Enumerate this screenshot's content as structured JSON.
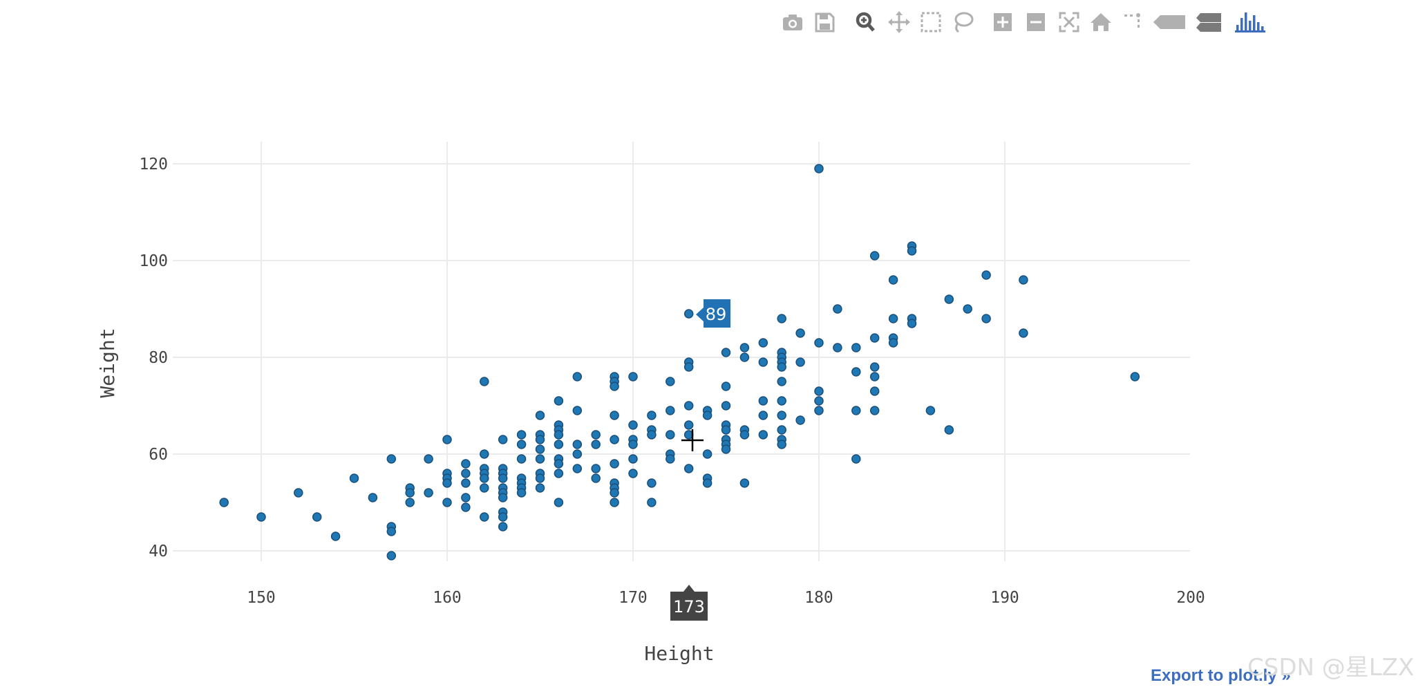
{
  "modebar": {
    "icons": [
      "camera-icon",
      "save-icon",
      "zoom-icon",
      "pan-icon",
      "box-select-icon",
      "lasso-icon",
      "zoom-in-icon",
      "zoom-out-icon",
      "autoscale-icon",
      "home-icon",
      "spike-lines-icon",
      "hover-closest-icon",
      "hover-compare-icon",
      "plotly-logo-icon"
    ],
    "icon_color": "#b0b0b0",
    "active_color": "#5a5a5a",
    "logo_color": "#3d6dbf"
  },
  "chart_data": {
    "type": "scatter",
    "xlabel": "Height",
    "ylabel": "Weight",
    "xlim": [
      145,
      200
    ],
    "ylim": [
      35,
      125
    ],
    "xticks": [
      150,
      160,
      170,
      180,
      190,
      200
    ],
    "yticks": [
      40,
      60,
      80,
      100,
      120
    ],
    "grid": true,
    "marker_color": "#1f77b4",
    "points": [
      [
        148,
        50
      ],
      [
        150,
        47
      ],
      [
        152,
        52
      ],
      [
        153,
        47
      ],
      [
        154,
        43
      ],
      [
        155,
        55
      ],
      [
        156,
        51
      ],
      [
        157,
        59
      ],
      [
        157,
        45
      ],
      [
        157,
        44
      ],
      [
        157,
        39
      ],
      [
        158,
        53
      ],
      [
        158,
        52
      ],
      [
        158,
        50
      ],
      [
        159,
        59
      ],
      [
        159,
        52
      ],
      [
        160,
        63
      ],
      [
        160,
        56
      ],
      [
        160,
        55
      ],
      [
        160,
        54
      ],
      [
        160,
        50
      ],
      [
        161,
        58
      ],
      [
        161,
        56
      ],
      [
        161,
        54
      ],
      [
        161,
        51
      ],
      [
        161,
        49
      ],
      [
        162,
        75
      ],
      [
        162,
        60
      ],
      [
        162,
        57
      ],
      [
        162,
        56
      ],
      [
        162,
        55
      ],
      [
        162,
        53
      ],
      [
        162,
        47
      ],
      [
        163,
        63
      ],
      [
        163,
        57
      ],
      [
        163,
        56
      ],
      [
        163,
        55
      ],
      [
        163,
        53
      ],
      [
        163,
        52
      ],
      [
        163,
        51
      ],
      [
        163,
        48
      ],
      [
        163,
        47
      ],
      [
        163,
        45
      ],
      [
        164,
        64
      ],
      [
        164,
        62
      ],
      [
        164,
        59
      ],
      [
        164,
        55
      ],
      [
        164,
        54
      ],
      [
        164,
        53
      ],
      [
        164,
        52
      ],
      [
        165,
        68
      ],
      [
        165,
        64
      ],
      [
        165,
        63
      ],
      [
        165,
        61
      ],
      [
        165,
        59
      ],
      [
        165,
        56
      ],
      [
        165,
        55
      ],
      [
        165,
        53
      ],
      [
        166,
        71
      ],
      [
        166,
        66
      ],
      [
        166,
        65
      ],
      [
        166,
        64
      ],
      [
        166,
        62
      ],
      [
        166,
        59
      ],
      [
        166,
        58
      ],
      [
        166,
        56
      ],
      [
        166,
        50
      ],
      [
        167,
        76
      ],
      [
        167,
        69
      ],
      [
        167,
        62
      ],
      [
        167,
        60
      ],
      [
        167,
        57
      ],
      [
        168,
        64
      ],
      [
        168,
        62
      ],
      [
        168,
        57
      ],
      [
        168,
        55
      ],
      [
        169,
        76
      ],
      [
        169,
        75
      ],
      [
        169,
        74
      ],
      [
        169,
        68
      ],
      [
        169,
        63
      ],
      [
        169,
        58
      ],
      [
        169,
        54
      ],
      [
        169,
        53
      ],
      [
        169,
        52
      ],
      [
        169,
        50
      ],
      [
        170,
        76
      ],
      [
        170,
        66
      ],
      [
        170,
        63
      ],
      [
        170,
        62
      ],
      [
        170,
        59
      ],
      [
        170,
        56
      ],
      [
        171,
        68
      ],
      [
        171,
        65
      ],
      [
        171,
        64
      ],
      [
        171,
        54
      ],
      [
        171,
        50
      ],
      [
        172,
        75
      ],
      [
        172,
        69
      ],
      [
        172,
        64
      ],
      [
        172,
        60
      ],
      [
        172,
        59
      ],
      [
        173,
        89
      ],
      [
        173,
        79
      ],
      [
        173,
        78
      ],
      [
        173,
        70
      ],
      [
        173,
        66
      ],
      [
        173,
        64
      ],
      [
        173,
        57
      ],
      [
        174,
        69
      ],
      [
        174,
        68
      ],
      [
        174,
        60
      ],
      [
        174,
        55
      ],
      [
        174,
        54
      ],
      [
        175,
        81
      ],
      [
        175,
        74
      ],
      [
        175,
        70
      ],
      [
        175,
        66
      ],
      [
        175,
        65
      ],
      [
        175,
        63
      ],
      [
        175,
        62
      ],
      [
        175,
        61
      ],
      [
        176,
        82
      ],
      [
        176,
        80
      ],
      [
        176,
        65
      ],
      [
        176,
        64
      ],
      [
        176,
        54
      ],
      [
        177,
        83
      ],
      [
        177,
        79
      ],
      [
        177,
        71
      ],
      [
        177,
        68
      ],
      [
        177,
        64
      ],
      [
        178,
        88
      ],
      [
        178,
        81
      ],
      [
        178,
        80
      ],
      [
        178,
        79
      ],
      [
        178,
        78
      ],
      [
        178,
        75
      ],
      [
        178,
        71
      ],
      [
        178,
        68
      ],
      [
        178,
        65
      ],
      [
        178,
        63
      ],
      [
        178,
        62
      ],
      [
        179,
        85
      ],
      [
        179,
        79
      ],
      [
        179,
        67
      ],
      [
        180,
        119
      ],
      [
        180,
        83
      ],
      [
        180,
        73
      ],
      [
        180,
        71
      ],
      [
        180,
        69
      ],
      [
        181,
        90
      ],
      [
        181,
        82
      ],
      [
        182,
        82
      ],
      [
        182,
        77
      ],
      [
        182,
        69
      ],
      [
        182,
        59
      ],
      [
        183,
        101
      ],
      [
        183,
        84
      ],
      [
        183,
        78
      ],
      [
        183,
        76
      ],
      [
        183,
        73
      ],
      [
        183,
        69
      ],
      [
        184,
        96
      ],
      [
        184,
        88
      ],
      [
        184,
        84
      ],
      [
        184,
        83
      ],
      [
        185,
        103
      ],
      [
        185,
        102
      ],
      [
        185,
        88
      ],
      [
        185,
        87
      ],
      [
        186,
        69
      ],
      [
        187,
        92
      ],
      [
        187,
        65
      ],
      [
        188,
        90
      ],
      [
        189,
        97
      ],
      [
        189,
        88
      ],
      [
        191,
        96
      ],
      [
        191,
        85
      ],
      [
        197,
        76
      ]
    ],
    "hover": {
      "y_value": "89",
      "x_value": "173"
    }
  },
  "footer": {
    "export_link": "Export to plot.ly »",
    "watermark": "CSDN @星LZX"
  }
}
